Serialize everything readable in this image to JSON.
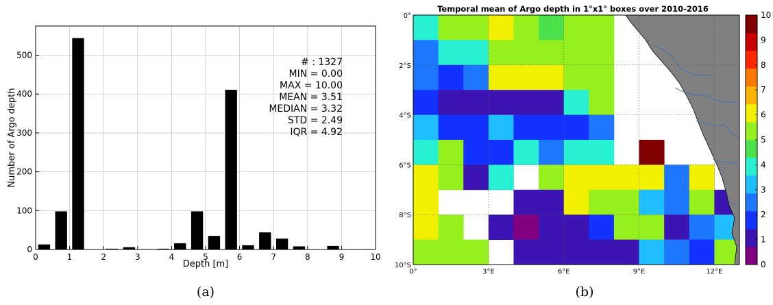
{
  "chart_data": [
    {
      "type": "bar",
      "panel_label": "(a)",
      "xlabel": "Depth [m]",
      "ylabel": "Number of Argo depth",
      "xlim": [
        0,
        10
      ],
      "ylim": [
        0,
        575
      ],
      "xticks": [
        "0",
        "1",
        "2",
        "3",
        "4",
        "5",
        "6",
        "7",
        "8",
        "9",
        "10"
      ],
      "yticks": [
        "0",
        "100",
        "200",
        "300",
        "400",
        "500"
      ],
      "grid": true,
      "bar_width": 0.35,
      "bar_color": "#000000",
      "bars": [
        {
          "x": 0.25,
          "value": 13
        },
        {
          "x": 0.75,
          "value": 98
        },
        {
          "x": 1.25,
          "value": 544
        },
        {
          "x": 2.25,
          "value": 2
        },
        {
          "x": 2.75,
          "value": 6
        },
        {
          "x": 3.25,
          "value": 1
        },
        {
          "x": 3.75,
          "value": 2
        },
        {
          "x": 4.25,
          "value": 16
        },
        {
          "x": 4.75,
          "value": 98
        },
        {
          "x": 5.25,
          "value": 35
        },
        {
          "x": 5.75,
          "value": 411
        },
        {
          "x": 6.25,
          "value": 11
        },
        {
          "x": 6.75,
          "value": 44
        },
        {
          "x": 7.25,
          "value": 28
        },
        {
          "x": 7.75,
          "value": 8
        },
        {
          "x": 8.75,
          "value": 9
        },
        {
          "x": 9.75,
          "value": 1
        }
      ],
      "stats": [
        "# : 1327",
        "MIN = 0.00",
        "MAX =  10.00",
        "MEAN = 3.51",
        "MEDIAN = 3.32",
        "STD = 2.49",
        "IQR = 4.92"
      ]
    },
    {
      "type": "heatmap",
      "panel_label": "(b)",
      "title": "Temporal mean of Argo depth in 1°x1° boxes over 2010-2016",
      "xticks": [
        "0°",
        "3°E",
        "6°E",
        "9°E",
        "12°E"
      ],
      "yticks": [
        "0°",
        "2°S",
        "4°S",
        "6°S",
        "8°S",
        "10°S"
      ],
      "colorbar_ticks": [
        "0",
        "1",
        "2",
        "3",
        "4",
        "5",
        "6",
        "7",
        "8",
        "9",
        "10"
      ],
      "vmin": 0,
      "vmax": 10,
      "land_color": "#808080",
      "colorscale": [
        "#800080",
        "#3c14b4",
        "#1432ff",
        "#1e78ff",
        "#1ebeff",
        "#28f0d2",
        "#4be14b",
        "#96f01e",
        "#f0f000",
        "#ffb400",
        "#ff7800",
        "#ff2800",
        "#c80000",
        "#800000"
      ],
      "grid_values": [
        [
          4.1,
          5.2,
          5.0,
          6.0,
          5.2,
          4.9,
          5.1,
          5.0,
          null,
          null,
          null,
          null,
          null
        ],
        [
          2.5,
          4.2,
          4.2,
          5.1,
          5.1,
          5.1,
          5.1,
          5.1,
          null,
          null,
          null,
          null,
          null
        ],
        [
          2.2,
          1.9,
          2.5,
          6.0,
          6.0,
          6.0,
          5.1,
          5.6,
          null,
          null,
          null,
          null,
          null
        ],
        [
          1.9,
          1.3,
          1.3,
          1.3,
          1.3,
          1.3,
          4.2,
          5.0,
          null,
          null,
          null,
          null,
          null
        ],
        [
          3.3,
          1.8,
          1.8,
          3.4,
          1.9,
          1.6,
          1.6,
          2.3,
          null,
          null,
          null,
          null,
          null
        ],
        [
          4.1,
          5.0,
          1.6,
          1.7,
          4.2,
          2.5,
          4.1,
          4.1,
          null,
          9.6,
          null,
          null,
          null
        ],
        [
          6.0,
          5.6,
          1.2,
          3.7,
          null,
          5.0,
          6.0,
          6.0,
          6.0,
          6.0,
          2.4,
          6.0,
          null
        ],
        [
          6.0,
          null,
          null,
          null,
          1.2,
          1.2,
          6.0,
          5.0,
          5.6,
          3.0,
          2.5,
          5.0,
          1.2
        ],
        [
          6.0,
          5.4,
          null,
          1.3,
          0.7,
          1.3,
          1.3,
          1.8,
          5.1,
          5.0,
          1.2,
          2.2,
          3.4
        ],
        [
          5.1,
          5.6,
          5.6,
          null,
          1.3,
          1.3,
          0.9,
          1.3,
          1.3,
          3.0,
          2.7,
          2.0,
          5.1
        ]
      ]
    }
  ]
}
